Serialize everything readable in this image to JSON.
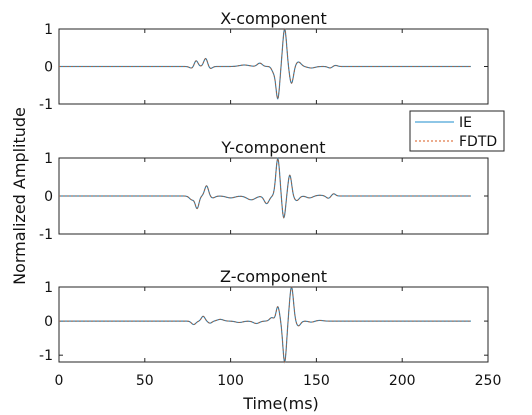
{
  "figure": {
    "shared_ylabel": "Normalized Amplitude",
    "shared_xlabel": "Time(ms)",
    "colors": {
      "ie": "#4aa3d6",
      "fdtd": "#e07a4a",
      "axis": "#262626",
      "text": "#111111"
    }
  },
  "chart_data": [
    {
      "type": "line",
      "title": "X-component",
      "xlim": [
        0,
        250
      ],
      "ylim": [
        -1,
        1
      ],
      "yticks": [
        -1,
        0,
        1
      ],
      "legend": {
        "placement": "right",
        "entries": [
          "IE",
          "FDTD"
        ]
      },
      "pulses": [
        {
          "t": 78,
          "a": -0.06,
          "w": 2.2
        },
        {
          "t": 79.8,
          "a": 0.18,
          "w": 1.6
        },
        {
          "t": 85.5,
          "a": 0.22,
          "w": 1.6
        },
        {
          "t": 88,
          "a": -0.06,
          "w": 1.8
        },
        {
          "t": 108,
          "a": 0.04,
          "w": 4.0
        },
        {
          "t": 117,
          "a": 0.09,
          "w": 2.0
        },
        {
          "t": 125,
          "a": -0.14,
          "w": 1.5
        },
        {
          "t": 127.5,
          "a": -0.85,
          "w": 1.5
        },
        {
          "t": 131.5,
          "a": 1.0,
          "w": 1.6
        },
        {
          "t": 135.5,
          "a": -0.45,
          "w": 1.6
        },
        {
          "t": 139.5,
          "a": 0.12,
          "w": 2.2
        },
        {
          "t": 147,
          "a": -0.04,
          "w": 3.0
        },
        {
          "t": 158,
          "a": -0.04,
          "w": 1.8
        },
        {
          "t": 161,
          "a": 0.03,
          "w": 1.8
        }
      ],
      "series": [
        {
          "name": "IE"
        },
        {
          "name": "FDTD"
        }
      ]
    },
    {
      "type": "line",
      "title": "Y-component",
      "xlim": [
        0,
        250
      ],
      "ylim": [
        -1,
        1
      ],
      "yticks": [
        -1,
        0,
        1
      ],
      "pulses": [
        {
          "t": 77.5,
          "a": -0.1,
          "w": 2.0
        },
        {
          "t": 80.5,
          "a": -0.32,
          "w": 1.5
        },
        {
          "t": 86,
          "a": 0.27,
          "w": 1.6
        },
        {
          "t": 89.5,
          "a": -0.05,
          "w": 2.0
        },
        {
          "t": 100,
          "a": -0.05,
          "w": 3.5
        },
        {
          "t": 112,
          "a": -0.1,
          "w": 3.5
        },
        {
          "t": 121,
          "a": -0.2,
          "w": 2.0
        },
        {
          "t": 127.5,
          "a": 0.98,
          "w": 1.6
        },
        {
          "t": 131,
          "a": -0.58,
          "w": 1.4
        },
        {
          "t": 134.5,
          "a": 0.55,
          "w": 1.5
        },
        {
          "t": 138.5,
          "a": -0.12,
          "w": 2.0
        },
        {
          "t": 146,
          "a": -0.05,
          "w": 2.5
        },
        {
          "t": 152,
          "a": 0.02,
          "w": 3.0
        },
        {
          "t": 157,
          "a": -0.06,
          "w": 1.8
        },
        {
          "t": 160,
          "a": 0.06,
          "w": 1.6
        }
      ],
      "series": [
        {
          "name": "IE"
        },
        {
          "name": "FDTD"
        }
      ]
    },
    {
      "type": "line",
      "title": "Z-component",
      "xlim": [
        0,
        250
      ],
      "ylim": [
        -1.2,
        1
      ],
      "yticks": [
        -1,
        0,
        1
      ],
      "pulses": [
        {
          "t": 78.5,
          "a": -0.1,
          "w": 1.8
        },
        {
          "t": 84,
          "a": 0.14,
          "w": 1.5
        },
        {
          "t": 88,
          "a": -0.06,
          "w": 1.6
        },
        {
          "t": 94,
          "a": 0.05,
          "w": 2.5
        },
        {
          "t": 105,
          "a": -0.04,
          "w": 3.0
        },
        {
          "t": 115,
          "a": -0.07,
          "w": 2.5
        },
        {
          "t": 124,
          "a": 0.1,
          "w": 1.8
        },
        {
          "t": 127.5,
          "a": 0.42,
          "w": 1.4
        },
        {
          "t": 131.5,
          "a": -1.2,
          "w": 1.5
        },
        {
          "t": 135.5,
          "a": 1.0,
          "w": 1.6
        },
        {
          "t": 139.5,
          "a": -0.14,
          "w": 1.8
        },
        {
          "t": 147,
          "a": -0.03,
          "w": 2.2
        },
        {
          "t": 152,
          "a": 0.02,
          "w": 2.5
        }
      ],
      "series": [
        {
          "name": "IE"
        },
        {
          "name": "FDTD"
        }
      ]
    }
  ],
  "xticks": [
    0,
    50,
    100,
    150,
    200,
    250
  ]
}
